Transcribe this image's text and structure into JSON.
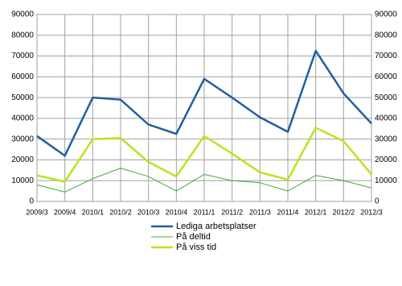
{
  "chart_data": {
    "type": "line",
    "categories": [
      "2009/3",
      "2009/4",
      "2010/1",
      "2010/2",
      "2010/3",
      "2010/4",
      "2011/1",
      "2011/2",
      "2011/3",
      "2011/4",
      "2012/1",
      "2012/2",
      "2012/3"
    ],
    "series": [
      {
        "name": "Lediga arbetsplatser",
        "color": "#1f5fa0",
        "width": 2.5,
        "values": [
          31500,
          22000,
          50000,
          49000,
          37000,
          32500,
          59000,
          50000,
          40500,
          33500,
          72500,
          52000,
          37500
        ]
      },
      {
        "name": "På deltid",
        "color": "#3cac3c",
        "width": 1,
        "values": [
          8000,
          4500,
          11000,
          16000,
          12000,
          5000,
          13000,
          10000,
          9000,
          5000,
          12500,
          10000,
          6500
        ]
      },
      {
        "name": "På viss tid",
        "color": "#b5e61d",
        "width": 2.5,
        "values": [
          12500,
          9500,
          30000,
          30500,
          19000,
          12000,
          31500,
          23000,
          14000,
          10500,
          35500,
          29000,
          13000
        ]
      }
    ],
    "ylim": [
      0,
      90000
    ],
    "yticks": [
      0,
      10000,
      20000,
      30000,
      40000,
      50000,
      60000,
      70000,
      80000,
      90000
    ],
    "y2lim": [
      0,
      90000
    ],
    "y2ticks": [
      0,
      10000,
      20000,
      30000,
      40000,
      50000,
      60000,
      70000,
      80000,
      90000
    ],
    "grid": true,
    "legend": "bottom"
  }
}
